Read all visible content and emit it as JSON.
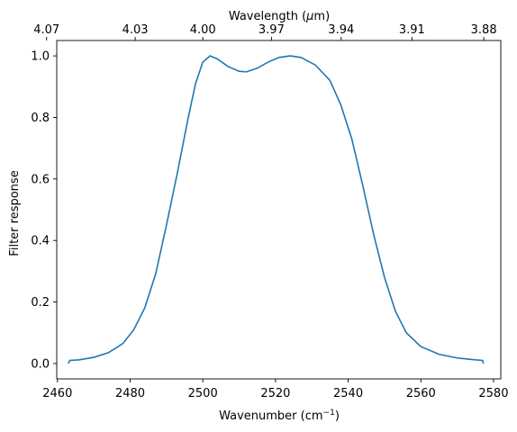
{
  "chart_data": {
    "type": "line",
    "xlabel": {
      "prefix": "Wavenumber (cm",
      "sup": "−1",
      "suffix": ")"
    },
    "ylabel": "Filter response",
    "top_xlabel": {
      "prefix": "Wavelength (",
      "mu": "μ",
      "suffix": "m)"
    },
    "xlim": [
      2459.8,
      2582
    ],
    "ylim": [
      -0.05,
      1.05
    ],
    "x_ticks": [
      {
        "value": 2460,
        "label": "2460"
      },
      {
        "value": 2480,
        "label": "2480"
      },
      {
        "value": 2500,
        "label": "2500"
      },
      {
        "value": 2520,
        "label": "2520"
      },
      {
        "value": 2540,
        "label": "2540"
      },
      {
        "value": 2560,
        "label": "2560"
      },
      {
        "value": 2580,
        "label": "2580"
      }
    ],
    "y_ticks": [
      {
        "value": 0.0,
        "label": "0.0"
      },
      {
        "value": 0.2,
        "label": "0.2"
      },
      {
        "value": 0.4,
        "label": "0.4"
      },
      {
        "value": 0.6,
        "label": "0.6"
      },
      {
        "value": 0.8,
        "label": "0.8"
      },
      {
        "value": 1.0,
        "label": "1.0"
      }
    ],
    "top_ticks": [
      {
        "value": 4.07,
        "label": "4.07"
      },
      {
        "value": 4.03,
        "label": "4.03"
      },
      {
        "value": 4.0,
        "label": "4.00"
      },
      {
        "value": 3.97,
        "label": "3.97"
      },
      {
        "value": 3.94,
        "label": "3.94"
      },
      {
        "value": 3.91,
        "label": "3.91"
      },
      {
        "value": 3.88,
        "label": "3.88"
      }
    ],
    "series": [
      {
        "color": "#1f77b4",
        "x": [
          2463,
          2463.4,
          2466,
          2470,
          2474,
          2478,
          2481,
          2484,
          2487,
          2490,
          2493,
          2496,
          2498,
          2500,
          2502,
          2504,
          2507,
          2510,
          2512,
          2515,
          2518,
          2521,
          2524,
          2527,
          2531,
          2535,
          2538,
          2541,
          2544,
          2547,
          2550,
          2553,
          2556,
          2560,
          2565,
          2570,
          2575,
          2577,
          2577.2
        ],
        "y": [
          0.0,
          0.01,
          0.012,
          0.02,
          0.035,
          0.065,
          0.11,
          0.18,
          0.29,
          0.45,
          0.62,
          0.8,
          0.91,
          0.98,
          1.0,
          0.99,
          0.965,
          0.95,
          0.948,
          0.96,
          0.98,
          0.995,
          1.0,
          0.995,
          0.97,
          0.92,
          0.84,
          0.73,
          0.58,
          0.42,
          0.28,
          0.17,
          0.1,
          0.055,
          0.03,
          0.018,
          0.012,
          0.01,
          0.0
        ]
      }
    ]
  }
}
